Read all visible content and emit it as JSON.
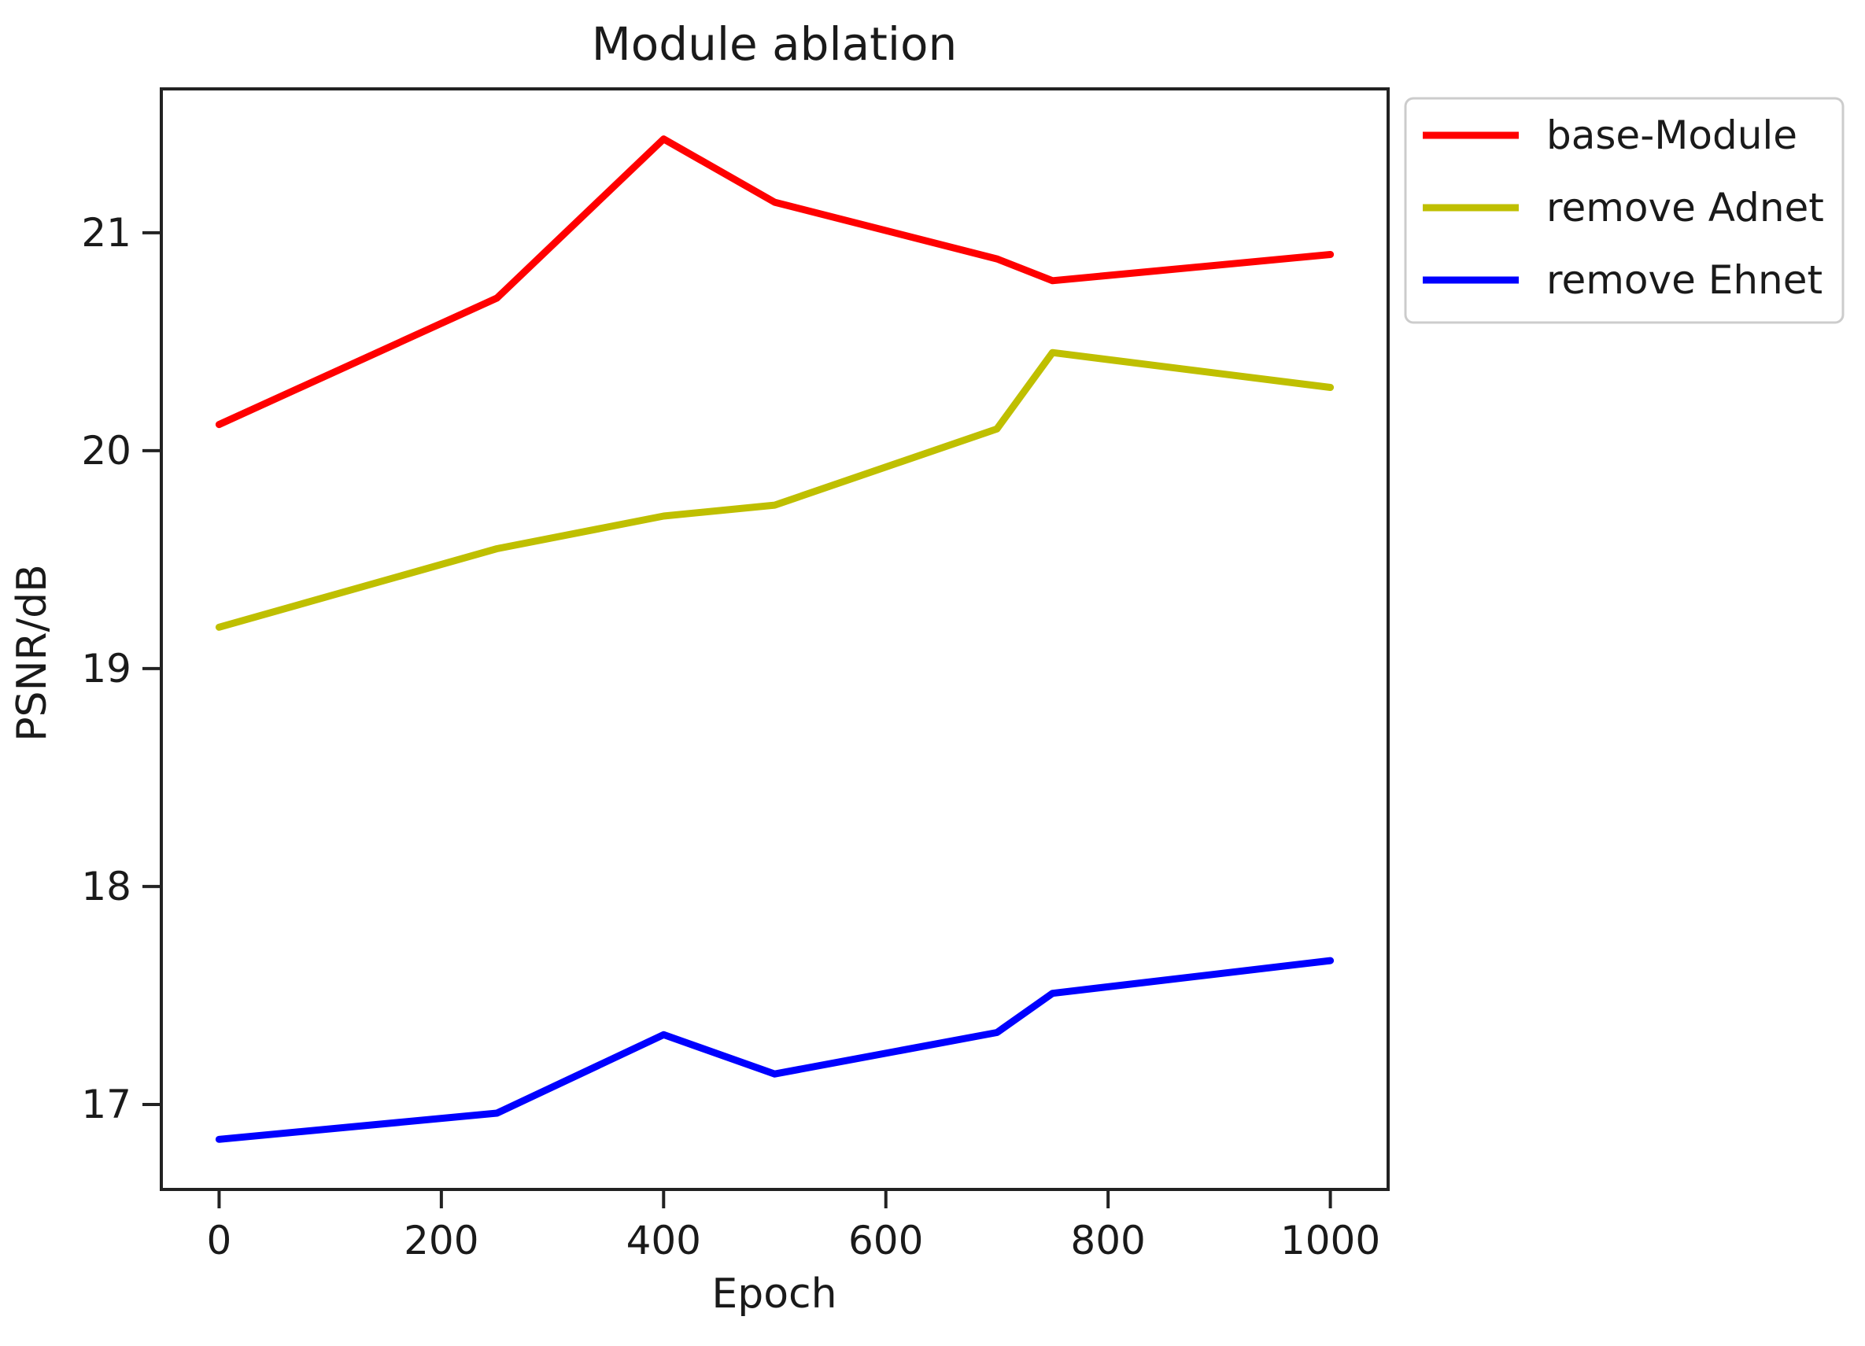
{
  "chart_data": {
    "type": "line",
    "title": "Module ablation",
    "xlabel": "Epoch",
    "ylabel": "PSNR/dB",
    "x": [
      0,
      250,
      400,
      500,
      700,
      750,
      1000
    ],
    "series": [
      {
        "name": "base-Module",
        "color": "#ff0000",
        "values": [
          20.12,
          20.7,
          21.43,
          21.14,
          20.88,
          20.78,
          20.9
        ]
      },
      {
        "name": "remove Adnet",
        "color": "#bfbf00",
        "values": [
          19.19,
          19.55,
          19.7,
          19.75,
          20.1,
          20.45,
          20.29
        ]
      },
      {
        "name": "remove Ehnet",
        "color": "#0000ff",
        "values": [
          16.84,
          16.96,
          17.32,
          17.14,
          17.33,
          17.51,
          17.66
        ]
      }
    ],
    "xticks": [
      0,
      200,
      400,
      600,
      800,
      1000
    ],
    "yticks": [
      17,
      18,
      19,
      20,
      21
    ],
    "xlim": [
      -52,
      1052
    ],
    "ylim": [
      16.61,
      21.66
    ],
    "grid": false,
    "legend": {
      "position": "upper-right-outside",
      "entries": [
        "base-Module",
        "remove Adnet",
        "remove Ehnet"
      ]
    },
    "colors": {
      "spine": "#222222",
      "text": "#1a1a1a",
      "background": "#ffffff",
      "legend_border": "#cccccc"
    }
  }
}
